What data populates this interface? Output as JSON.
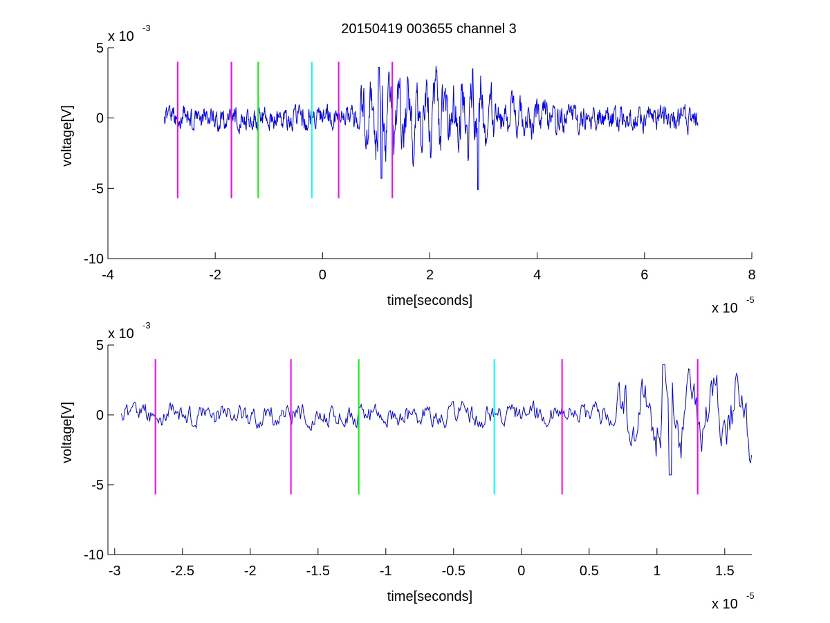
{
  "figure": {
    "title": "20150419 003655 channel 3"
  },
  "chart_data": [
    {
      "type": "line",
      "title": "20150419 003655 channel 3",
      "xlabel": "time[seconds]",
      "ylabel": "voltage[V]",
      "x_exponent_label": "x 10",
      "x_exponent": "-5",
      "y_exponent_label": "x 10",
      "y_exponent": "-3",
      "xlim": [
        -4,
        8
      ],
      "ylim": [
        -10,
        5
      ],
      "xticks": [
        -4,
        -2,
        0,
        2,
        4,
        6,
        8
      ],
      "xtick_labels": [
        "-4",
        "-2",
        "0",
        "2",
        "4",
        "6",
        "8"
      ],
      "yticks": [
        -10,
        -5,
        0,
        5
      ],
      "ytick_labels": [
        "-10",
        "-5",
        "0",
        "5"
      ],
      "grid": false,
      "series_color": "#0000ff",
      "signal_range": [
        -2.95,
        7.0
      ],
      "markers": [
        {
          "x": -2.7,
          "color": "#ff00ff"
        },
        {
          "x": -1.7,
          "color": "#ff00ff"
        },
        {
          "x": -1.2,
          "color": "#00ff00"
        },
        {
          "x": -0.2,
          "color": "#00ffff"
        },
        {
          "x": 0.3,
          "color": "#ff00ff"
        },
        {
          "x": 1.3,
          "color": "#ff00ff"
        }
      ],
      "marker_range": [
        -5.7,
        4.0
      ]
    },
    {
      "type": "line",
      "xlabel": "time[seconds]",
      "ylabel": "voltage[V]",
      "x_exponent_label": "x 10",
      "x_exponent": "-5",
      "y_exponent_label": "x 10",
      "y_exponent": "-3",
      "xlim": [
        -3.05,
        1.7
      ],
      "ylim": [
        -10,
        5
      ],
      "xticks": [
        -3,
        -2.5,
        -2,
        -1.5,
        -1,
        -0.5,
        0,
        0.5,
        1,
        1.5
      ],
      "xtick_labels": [
        "-3",
        "-2.5",
        "-2",
        "-1.5",
        "-1",
        "-0.5",
        "0",
        "0.5",
        "1",
        "1.5"
      ],
      "yticks": [
        -10,
        -5,
        0,
        5
      ],
      "ytick_labels": [
        "-10",
        "-5",
        "0",
        "5"
      ],
      "grid": false,
      "series_color": "#0000ff",
      "signal_range": [
        -2.95,
        1.7
      ],
      "markers": [
        {
          "x": -2.7,
          "color": "#ff00ff"
        },
        {
          "x": -1.7,
          "color": "#ff00ff"
        },
        {
          "x": -1.2,
          "color": "#00ff00"
        },
        {
          "x": -0.2,
          "color": "#00ffff"
        },
        {
          "x": 0.3,
          "color": "#ff00ff"
        },
        {
          "x": 1.3,
          "color": "#ff00ff"
        }
      ],
      "marker_range": [
        -5.7,
        4.0
      ]
    }
  ]
}
